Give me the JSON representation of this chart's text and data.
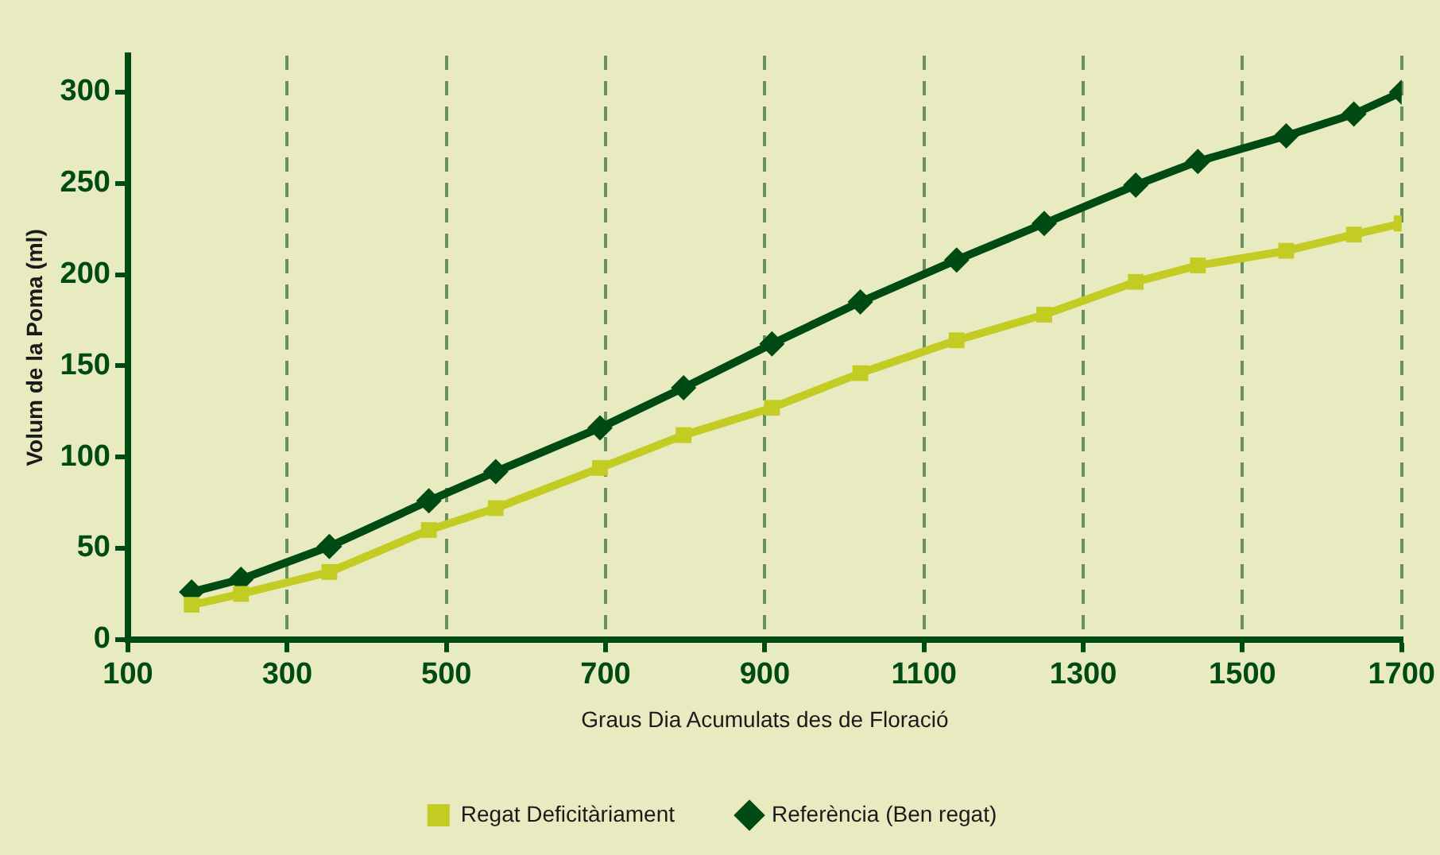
{
  "chart_data": {
    "type": "line",
    "ylabel": "Volum de la Poma (ml)",
    "xlabel": "Graus Dia Acumulats des de Floració",
    "xlim": [
      100,
      1700
    ],
    "xticks": [
      100,
      300,
      500,
      700,
      900,
      1100,
      1300,
      1500,
      1700
    ],
    "ylim": [
      0,
      320
    ],
    "yticks": [
      0,
      50,
      100,
      150,
      200,
      250,
      300
    ],
    "grid": "x",
    "legend": "bottom",
    "line_style": "solid",
    "series": [
      {
        "name": "Regat Deficitàriament",
        "color": "#c2cc22",
        "marker": "square",
        "x": [
          180,
          242,
          353,
          478,
          562,
          693,
          798,
          909,
          1020,
          1141,
          1251,
          1366,
          1444,
          1555,
          1640,
          1700
        ],
        "values": [
          19,
          25,
          37,
          60,
          72,
          94,
          112,
          127,
          146,
          164,
          178,
          196,
          205,
          213,
          222,
          228
        ]
      },
      {
        "name": "Referència (Ben regat)",
        "color": "#004a14",
        "marker": "diamond",
        "x": [
          180,
          242,
          353,
          478,
          562,
          693,
          798,
          909,
          1020,
          1141,
          1251,
          1366,
          1444,
          1555,
          1640,
          1700
        ],
        "values": [
          26,
          33,
          51,
          76,
          92,
          116,
          138,
          162,
          185,
          208,
          228,
          249,
          262,
          276,
          288,
          300
        ]
      }
    ]
  }
}
